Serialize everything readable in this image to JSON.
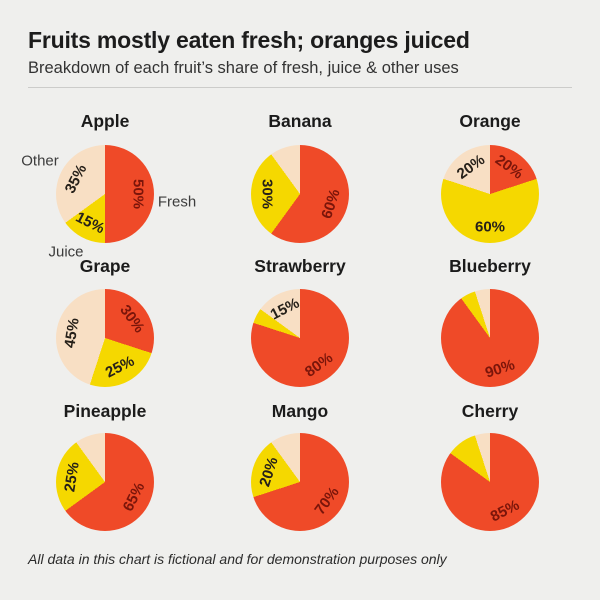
{
  "header": {
    "title": "Fruits mostly eaten fresh; oranges juiced",
    "subtitle": "Breakdown of each fruit’s share of fresh, juice & other uses"
  },
  "footer": {
    "note": "All data in this chart is fictional and for demonstration purposes only"
  },
  "chart_data": {
    "type": "pie",
    "layout_hint": "3x3 grid of pies; slices start at 12 o'clock and run clockwise in order fresh, juice, other; labels shown only for slices >= 15%",
    "unit": "%",
    "series_labels": [
      "Fresh",
      "Juice",
      "Other"
    ],
    "colors": {
      "fresh": "#EF4A28",
      "juice": "#F5D800",
      "other": "#F8DFC4"
    },
    "label_colors": {
      "on_fresh": "#7A150A",
      "on_light": "#262019"
    },
    "label_min_value": 15,
    "charts": [
      {
        "fruit": "Apple",
        "values": {
          "fresh": 50,
          "juice": 15,
          "other": 35
        },
        "callouts": [
          "Other",
          "Fresh",
          "Juice"
        ]
      },
      {
        "fruit": "Banana",
        "values": {
          "fresh": 60,
          "juice": 30,
          "other": 10
        }
      },
      {
        "fruit": "Orange",
        "values": {
          "fresh": 20,
          "juice": 60,
          "other": 20
        }
      },
      {
        "fruit": "Grape",
        "values": {
          "fresh": 30,
          "juice": 25,
          "other": 45
        }
      },
      {
        "fruit": "Strawberry",
        "values": {
          "fresh": 80,
          "juice": 5,
          "other": 15
        }
      },
      {
        "fruit": "Blueberry",
        "values": {
          "fresh": 90,
          "juice": 5,
          "other": 5
        }
      },
      {
        "fruit": "Pineapple",
        "values": {
          "fresh": 65,
          "juice": 25,
          "other": 10
        }
      },
      {
        "fruit": "Mango",
        "values": {
          "fresh": 70,
          "juice": 20,
          "other": 10
        }
      },
      {
        "fruit": "Cherry",
        "values": {
          "fresh": 85,
          "juice": 10,
          "other": 5
        }
      }
    ]
  }
}
